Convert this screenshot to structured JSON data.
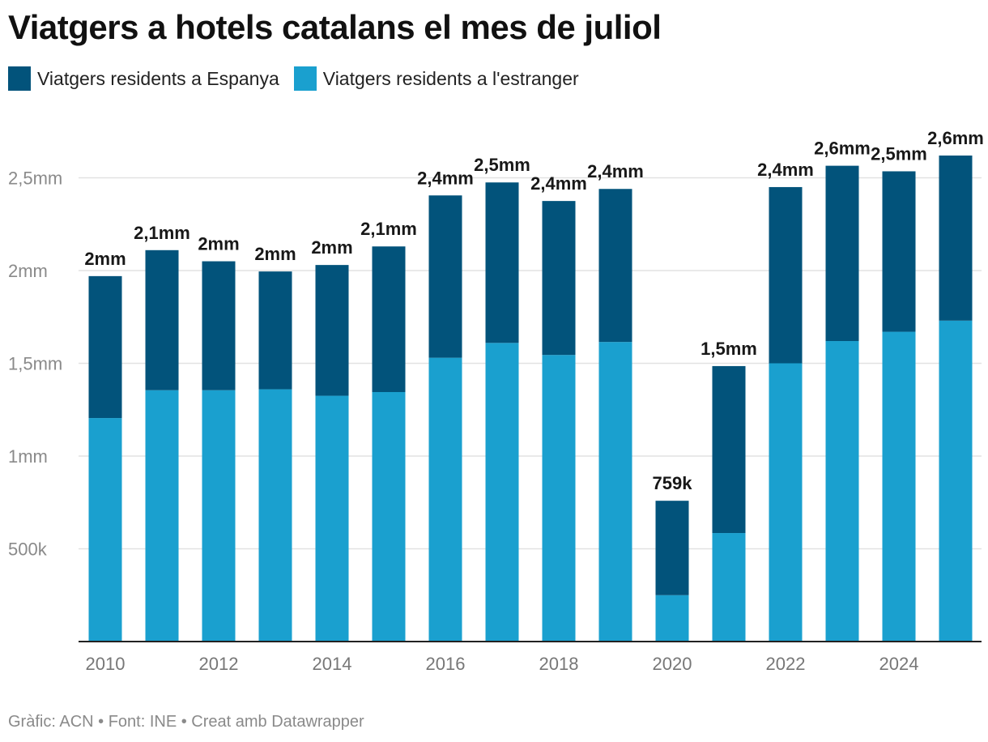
{
  "chart_data": {
    "type": "bar",
    "stacked": true,
    "title": "Viatgers a hotels catalans el mes de juliol",
    "categories": [
      "2010",
      "2011",
      "2012",
      "2013",
      "2014",
      "2015",
      "2016",
      "2017",
      "2018",
      "2019",
      "2020",
      "2021",
      "2022",
      "2023",
      "2024",
      "2025"
    ],
    "series": [
      {
        "name": "Viatgers residents a l'estranger",
        "color": "#1aa0cf",
        "values": [
          1205000,
          1355000,
          1355000,
          1360000,
          1325000,
          1345000,
          1530000,
          1610000,
          1545000,
          1615000,
          250000,
          585000,
          1500000,
          1620000,
          1670000,
          1730000
        ]
      },
      {
        "name": "Viatgers residents a Espanya",
        "color": "#02537b",
        "values": [
          765000,
          755000,
          695000,
          635000,
          705000,
          785000,
          875000,
          865000,
          830000,
          825000,
          509000,
          900000,
          950000,
          945000,
          865000,
          890000
        ]
      }
    ],
    "total_labels": [
      "2mm",
      "2,1mm",
      "2mm",
      "2mm",
      "2mm",
      "2,1mm",
      "2,4mm",
      "2,5mm",
      "2,4mm",
      "2,4mm",
      "759k",
      "1,5mm",
      "2,4mm",
      "2,6mm",
      "2,5mm",
      "2,6mm"
    ],
    "x_tick_labels": [
      "2010",
      "2012",
      "2014",
      "2016",
      "2018",
      "2020",
      "2022",
      "2024"
    ],
    "y_ticks": [
      {
        "value": 500000,
        "label": "500k"
      },
      {
        "value": 1000000,
        "label": "1mm"
      },
      {
        "value": 1500000,
        "label": "1,5mm"
      },
      {
        "value": 2000000,
        "label": "2mm"
      },
      {
        "value": 2500000,
        "label": "2,5mm"
      }
    ],
    "ylim": [
      0,
      2700000
    ],
    "grid": true,
    "legend_position": "top-left"
  },
  "footer": "Gràfic: ACN • Font: INE • Creat amb Datawrapper"
}
